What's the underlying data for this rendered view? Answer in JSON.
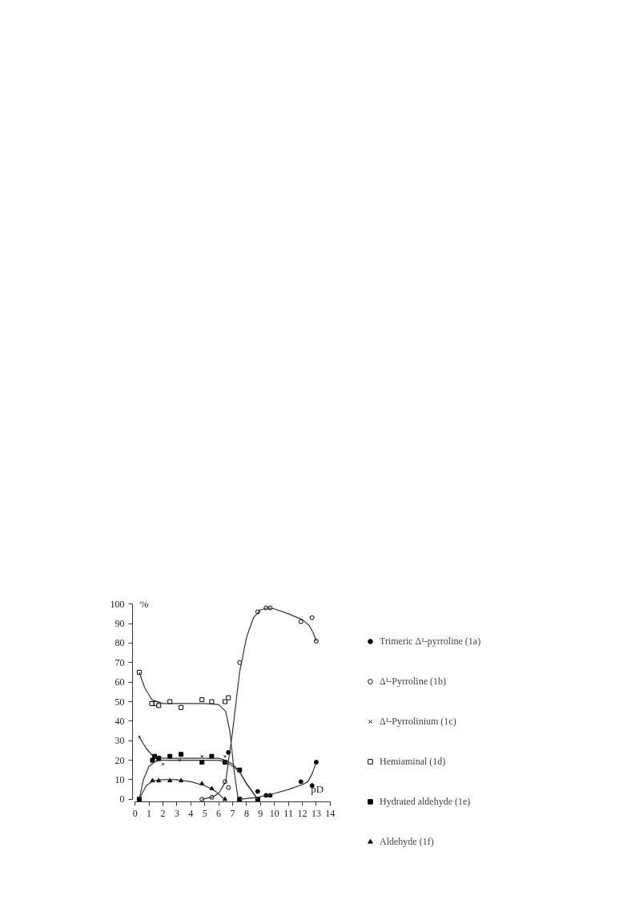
{
  "chart_data": {
    "type": "scatter",
    "xlabel": "pD",
    "ylabel": "%",
    "xlim": [
      0,
      14
    ],
    "xticks": [
      0,
      1,
      2,
      3,
      4,
      5,
      6,
      7,
      8,
      9,
      10,
      11,
      12,
      13,
      14
    ],
    "ylim": [
      0,
      100
    ],
    "yticks": [
      0,
      10,
      20,
      30,
      40,
      50,
      60,
      70,
      80,
      90,
      100
    ],
    "grid": false,
    "legend": "right",
    "series": [
      {
        "name": "Trimeric Δ¹-pyrroline (1a)",
        "color": "#000000",
        "marker": "circle",
        "x": [
          6.7,
          8.8,
          9.4,
          9.7,
          11.9,
          12.7,
          13.0
        ],
        "values": [
          24,
          4,
          2,
          2,
          9,
          7,
          19
        ]
      },
      {
        "name": "Δ¹-Pyrroline (1b)",
        "color": "#000000",
        "marker": "circle-open",
        "x": [
          4.8,
          5.5,
          6.45,
          6.7,
          7.5,
          8.8,
          9.4,
          9.7,
          11.9,
          12.7,
          13.0
        ],
        "values": [
          0,
          1,
          9,
          6,
          70,
          96,
          98,
          98,
          91,
          93,
          81
        ]
      },
      {
        "name": "Δ¹-Pyrrolinium (1c)",
        "color": "#000000",
        "marker": "cross",
        "x": [
          0.3,
          1.3,
          2.0,
          3.2,
          4.8,
          6.45
        ],
        "values": [
          32,
          null,
          18,
          20,
          22,
          22
        ]
      },
      {
        "name": "Hemiaminal (1d)",
        "color": "#000000",
        "marker": "square-open",
        "x": [
          0.3,
          1.2,
          1.5,
          1.7,
          2.5,
          3.3,
          4.8,
          5.5,
          6.45,
          6.7
        ],
        "values": [
          65,
          49,
          49,
          48,
          50,
          47,
          51,
          50,
          50,
          52
        ]
      },
      {
        "name": "Hydrated aldehyde (1e)",
        "color": "#000000",
        "marker": "square",
        "x": [
          0.3,
          1.25,
          1.4,
          1.7,
          2.5,
          3.3,
          4.8,
          5.5,
          6.45,
          7.5,
          7.5,
          8.8
        ],
        "values": [
          0,
          20,
          22,
          21,
          22,
          23,
          19,
          22,
          19,
          15,
          0,
          0
        ]
      },
      {
        "name": "Aldehyde (1f)",
        "color": "#000000",
        "marker": "triangle",
        "x": [
          1.25,
          1.7,
          2.5,
          3.3,
          4.8,
          5.5,
          6.45
        ],
        "values": [
          9.5,
          9.5,
          9.5,
          9.5,
          8,
          5.5,
          0
        ]
      },
      {
        "type": "line",
        "color": "#333333",
        "marker": "none",
        "x": [
          7.5,
          8.8,
          10,
          11,
          12,
          12.4,
          12.7,
          13.0
        ],
        "values": [
          0,
          1,
          3,
          5,
          7.5,
          9,
          13,
          19
        ]
      },
      {
        "type": "line",
        "color": "#333333",
        "marker": "none",
        "x": [
          4.8,
          5.5,
          6,
          6.5,
          7,
          7.5,
          8,
          8.5,
          9,
          9.5,
          10,
          11,
          12,
          12.5,
          12.8,
          13.0
        ],
        "values": [
          0,
          1,
          3,
          9,
          35,
          65,
          83,
          93,
          97,
          98,
          97.5,
          95,
          92,
          89,
          85,
          81
        ]
      },
      {
        "type": "line",
        "color": "#333333",
        "marker": "none",
        "x": [
          0.3,
          0.8,
          1.3,
          2,
          3,
          4,
          5,
          6,
          6.5,
          7,
          7.5,
          8,
          8.8
        ],
        "values": [
          32,
          26,
          22,
          21,
          21,
          21,
          21,
          21,
          20,
          18,
          14,
          8,
          0
        ]
      },
      {
        "type": "line",
        "color": "#333333",
        "marker": "none",
        "x": [
          0.3,
          0.7,
          1.2,
          2,
          3,
          4,
          5,
          6,
          6.5,
          6.8,
          7.1,
          7.4
        ],
        "values": [
          65,
          57,
          51,
          49,
          49,
          49,
          49,
          48.5,
          45,
          35,
          15,
          0
        ]
      },
      {
        "type": "line",
        "color": "#333333",
        "marker": "none",
        "x": [
          0.3,
          0.6,
          1,
          1.5,
          2,
          4,
          6,
          6.5,
          7,
          7.5,
          8,
          8.8
        ],
        "values": [
          0,
          10,
          17,
          19.5,
          20,
          20,
          20,
          19,
          17,
          14,
          8,
          0
        ]
      },
      {
        "type": "line",
        "color": "#333333",
        "marker": "none",
        "x": [
          0.3,
          0.8,
          1.3,
          2,
          3,
          4,
          5,
          5.8,
          6.4
        ],
        "values": [
          0,
          7,
          9.5,
          10,
          10,
          9,
          7,
          4,
          0
        ]
      }
    ]
  }
}
